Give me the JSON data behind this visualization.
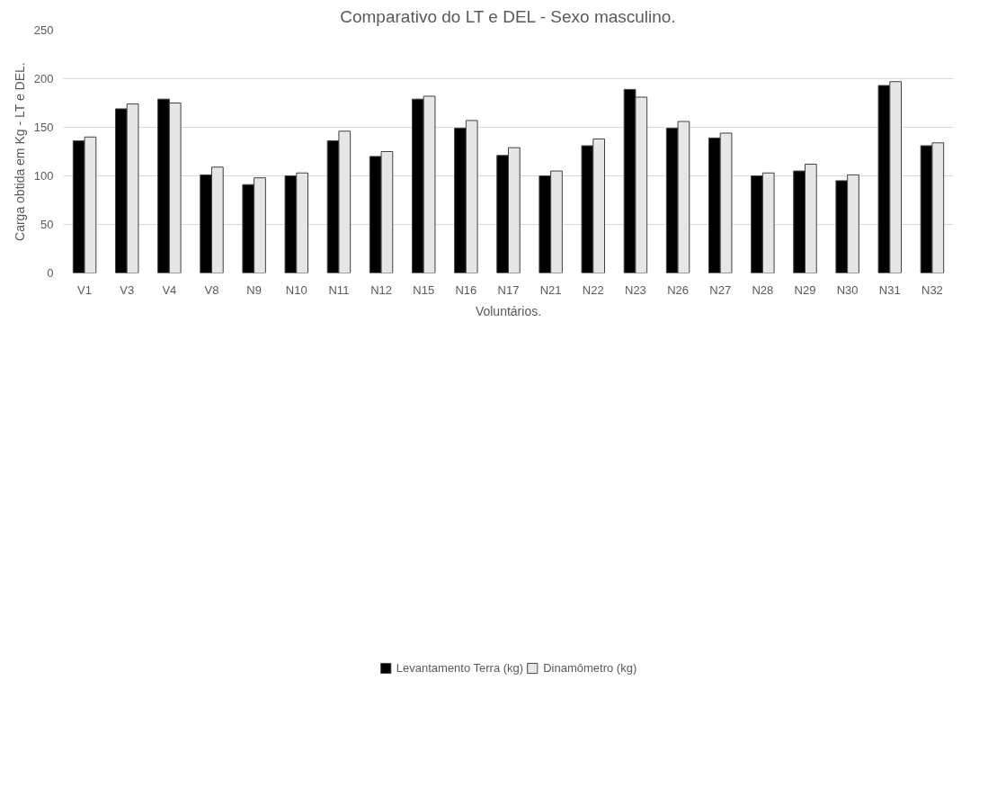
{
  "chart_data": {
    "type": "bar",
    "title": "Comparativo do LT e DEL - Sexo masculino.",
    "xlabel": "Voluntários.",
    "ylabel": "Carga obtida em Kg - LT e DEL.",
    "categories": [
      "V1",
      "V3",
      "V4",
      "V8",
      "N9",
      "N10",
      "N11",
      "N12",
      "N15",
      "N16",
      "N17",
      "N21",
      "N22",
      "N23",
      "N26",
      "N27",
      "N28",
      "N29",
      "N30",
      "N31",
      "N32"
    ],
    "series": [
      {
        "name": "Levantamento Terra (kg)",
        "color": "#000000",
        "values": [
          136,
          169,
          179,
          101,
          91,
          100,
          136,
          120,
          179,
          149,
          121,
          100,
          131,
          189,
          149,
          139,
          100,
          105,
          95,
          193,
          131
        ]
      },
      {
        "name": "Dinamômetro (kg)",
        "color": "#e6e6e6",
        "values": [
          140,
          174,
          175,
          109,
          98,
          103,
          146,
          125,
          182,
          157,
          129,
          105,
          138,
          181,
          156,
          144,
          103,
          112,
          101,
          197,
          134
        ]
      }
    ],
    "ylim": [
      0,
      250
    ],
    "yticks": [
      0,
      50,
      100,
      150,
      200,
      250
    ],
    "grid": "y",
    "legend": "bottom"
  }
}
